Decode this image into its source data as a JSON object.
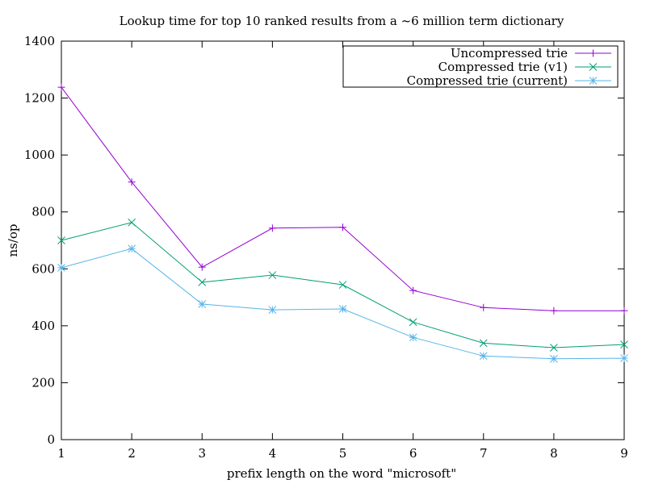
{
  "chart_data": {
    "type": "line",
    "title": "Lookup time for top 10 ranked results from a ~6 million term dictionary",
    "xlabel": "prefix length on the word \"microsoft\"",
    "ylabel": "ns/op",
    "x": [
      1,
      2,
      3,
      4,
      5,
      6,
      7,
      8,
      9
    ],
    "xlim": [
      1,
      9
    ],
    "ylim": [
      0,
      1400
    ],
    "xticks": [
      1,
      2,
      3,
      4,
      5,
      6,
      7,
      8,
      9
    ],
    "yticks": [
      0,
      200,
      400,
      600,
      800,
      1000,
      1200,
      1400
    ],
    "grid": false,
    "legend_position": "top-right",
    "series": [
      {
        "name": "Uncompressed trie",
        "color": "#9400d3",
        "marker": "plus",
        "values": [
          1238,
          905,
          606,
          743,
          746,
          524,
          464,
          453,
          453
        ]
      },
      {
        "name": "Compressed trie (v1)",
        "color": "#009e73",
        "marker": "cross",
        "values": [
          700,
          763,
          553,
          578,
          544,
          413,
          339,
          323,
          334
        ]
      },
      {
        "name": "Compressed trie (current)",
        "color": "#56b4e9",
        "marker": "star",
        "values": [
          604,
          671,
          476,
          456,
          459,
          359,
          294,
          284,
          286
        ]
      }
    ]
  }
}
